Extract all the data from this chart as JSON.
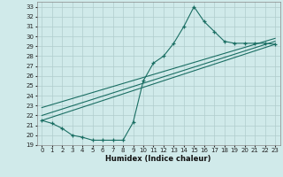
{
  "xlabel": "Humidex (Indice chaleur)",
  "bg_color": "#d0eaea",
  "grid_color": "#b0cccc",
  "line_color": "#1a6e63",
  "xlim": [
    -0.5,
    23.5
  ],
  "ylim": [
    19,
    33.5
  ],
  "xticks": [
    0,
    1,
    2,
    3,
    4,
    5,
    6,
    7,
    8,
    9,
    10,
    11,
    12,
    13,
    14,
    15,
    16,
    17,
    18,
    19,
    20,
    21,
    22,
    23
  ],
  "yticks": [
    19,
    20,
    21,
    22,
    23,
    24,
    25,
    26,
    27,
    28,
    29,
    30,
    31,
    32,
    33
  ],
  "series1_x": [
    0,
    1,
    2,
    3,
    4,
    5,
    6,
    7,
    8,
    9,
    10,
    11,
    12,
    13,
    14,
    15,
    16,
    17,
    18,
    19,
    20,
    21,
    22,
    23
  ],
  "series1_y": [
    21.5,
    21.2,
    20.7,
    20.0,
    19.8,
    19.5,
    19.5,
    19.5,
    19.5,
    21.3,
    25.5,
    27.3,
    28.0,
    29.3,
    31.0,
    33.0,
    31.5,
    30.5,
    29.5,
    29.3,
    29.3,
    29.3,
    29.3,
    29.2
  ],
  "line1_x": [
    0,
    23
  ],
  "line1_y": [
    21.5,
    29.2
  ],
  "line2_x": [
    0,
    23
  ],
  "line2_y": [
    22.0,
    29.5
  ],
  "line3_x": [
    0,
    23
  ],
  "line3_y": [
    22.8,
    29.8
  ]
}
